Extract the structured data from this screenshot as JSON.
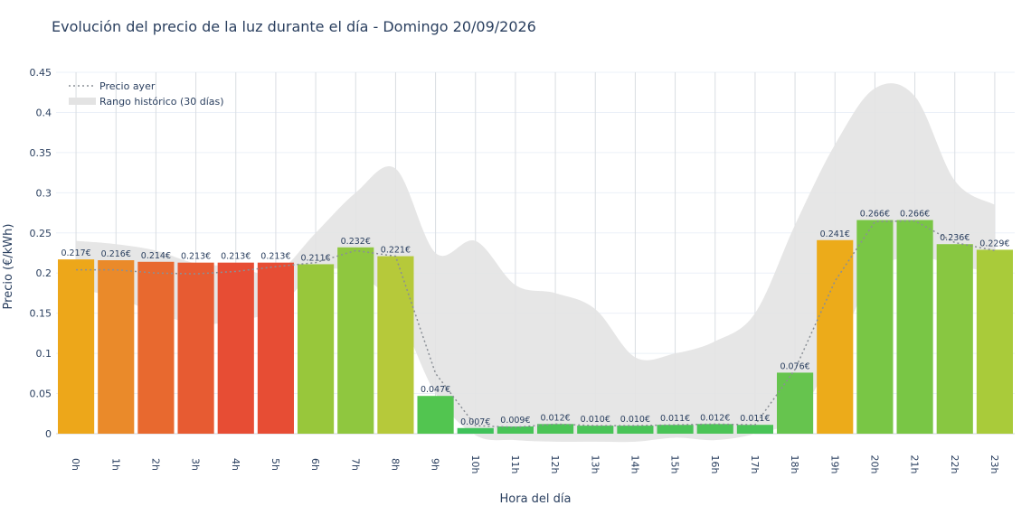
{
  "chart_data": {
    "type": "bar",
    "title": "Evolución del precio de la luz durante el día - Domingo 20/09/2026",
    "xlabel": "Hora del día",
    "ylabel": "Precio (€/kWh)",
    "ylim": [
      0,
      0.45
    ],
    "yticks": [
      "0",
      "0.05",
      "0.1",
      "0.15",
      "0.2",
      "0.25",
      "0.3",
      "0.35",
      "0.4",
      "0.45"
    ],
    "grid": true,
    "legend_position": "top-left",
    "categories": [
      "0h",
      "1h",
      "2h",
      "3h",
      "4h",
      "5h",
      "6h",
      "7h",
      "8h",
      "9h",
      "10h",
      "11h",
      "12h",
      "13h",
      "14h",
      "15h",
      "16h",
      "17h",
      "18h",
      "19h",
      "20h",
      "21h",
      "22h",
      "23h"
    ],
    "series": [
      {
        "type": "bar",
        "values": [
          0.217,
          0.216,
          0.214,
          0.213,
          0.213,
          0.213,
          0.211,
          0.232,
          0.221,
          0.047,
          0.007,
          0.009,
          0.012,
          0.01,
          0.01,
          0.011,
          0.012,
          0.011,
          0.076,
          0.241,
          0.266,
          0.266,
          0.236,
          0.229
        ],
        "labels": [
          "0.217€",
          "0.216€",
          "0.214€",
          "0.213€",
          "0.213€",
          "0.213€",
          "0.211€",
          "0.232€",
          "0.221€",
          "0.047€",
          "0.007€",
          "0.009€",
          "0.012€",
          "0.010€",
          "0.010€",
          "0.011€",
          "0.012€",
          "0.011€",
          "0.076€",
          "0.241€",
          "0.266€",
          "0.266€",
          "0.236€",
          "0.229€"
        ],
        "colors": [
          "#eda71a",
          "#ea8a2a",
          "#e8692f",
          "#e75b32",
          "#e74d34",
          "#e74d34",
          "#98c73b",
          "#8fc73f",
          "#b6c93a",
          "#52c550",
          "#3fc25a",
          "#48c457",
          "#4bc456",
          "#49c457",
          "#49c457",
          "#49c457",
          "#4bc456",
          "#49c457",
          "#66c44e",
          "#ecab1a",
          "#79c645",
          "#79c645",
          "#88c741",
          "#a9cb3a"
        ]
      },
      {
        "name": "Precio ayer",
        "type": "line",
        "values": [
          0.204,
          0.204,
          0.2,
          0.199,
          0.202,
          0.208,
          0.213,
          0.228,
          0.221,
          0.075,
          0.01,
          0.008,
          0.012,
          0.01,
          0.01,
          0.011,
          0.012,
          0.011,
          0.08,
          0.19,
          0.264,
          0.265,
          0.238,
          0.228
        ],
        "color": "#8a8f96"
      },
      {
        "name": "Rango histórico (30 días)",
        "type": "area",
        "upper": [
          0.24,
          0.236,
          0.228,
          0.212,
          0.208,
          0.2,
          0.25,
          0.3,
          0.33,
          0.225,
          0.24,
          0.185,
          0.175,
          0.155,
          0.095,
          0.1,
          0.115,
          0.15,
          0.26,
          0.36,
          0.43,
          0.42,
          0.315,
          0.285
        ],
        "lower": [
          0.18,
          0.17,
          0.15,
          0.137,
          0.14,
          0.155,
          0.2,
          0.2,
          0.155,
          0.05,
          -0.002,
          -0.008,
          -0.01,
          -0.01,
          -0.01,
          -0.005,
          -0.008,
          0.0,
          0.02,
          0.1,
          0.2,
          0.22,
          0.21,
          0.2
        ],
        "color": "#e3e3e3"
      }
    ]
  }
}
